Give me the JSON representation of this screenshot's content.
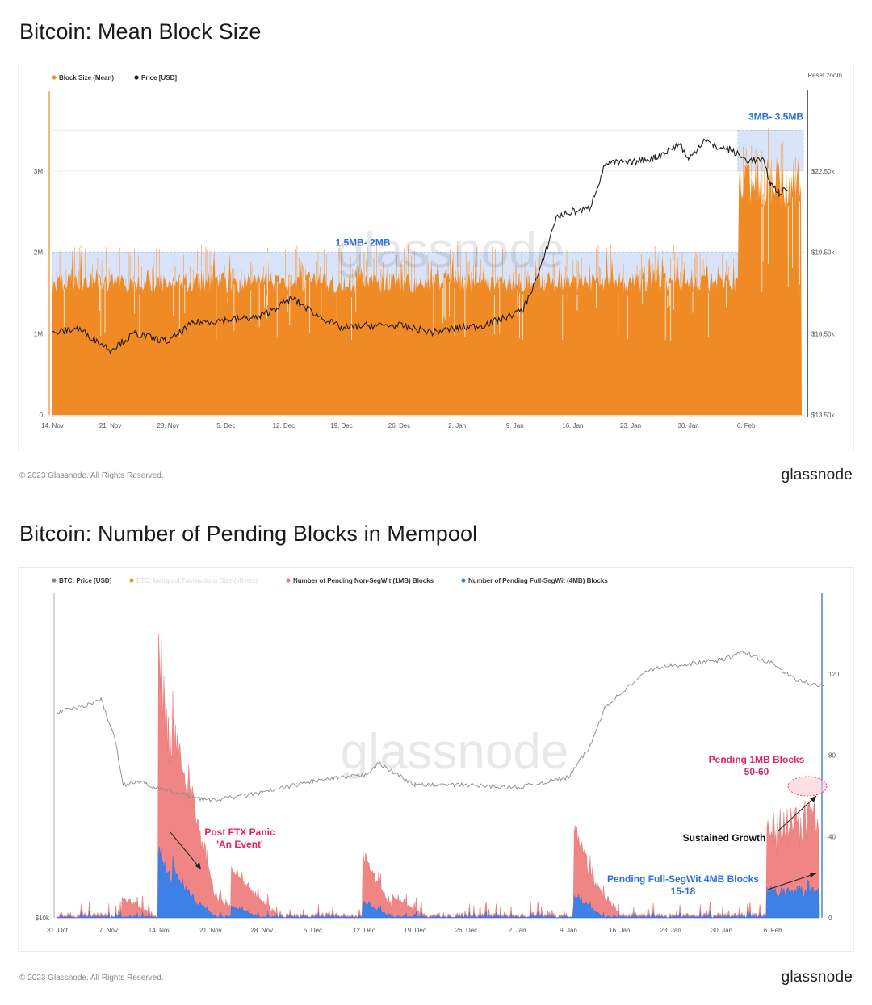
{
  "chart_data": [
    {
      "type": "area",
      "title": "Bitcoin: Mean Block Size",
      "reset_zoom": "Reset zoom",
      "watermark": "glassnode",
      "legend": [
        {
          "label": "Block Size (Mean)",
          "color": "#f7931a"
        },
        {
          "label": "Price [USD]",
          "color": "#222222"
        }
      ],
      "x_ticks": [
        "14. Nov",
        "21. Nov",
        "28. Nov",
        "5. Dec",
        "12. Dec",
        "19. Dec",
        "26. Dec",
        "2. Jan",
        "9. Jan",
        "16. Jan",
        "23. Jan",
        "30. Jan",
        "6. Feb"
      ],
      "y_left_ticks": [
        "0",
        "1M",
        "2M",
        "3M"
      ],
      "y_left_range": [
        0,
        4000000
      ],
      "y_right_ticks": [
        "$13.50k",
        "$16.50k",
        "$19.50k",
        "$22.50k"
      ],
      "y_right_range": [
        13500,
        25500
      ],
      "annotations": [
        {
          "text": "1.5MB- 2MB",
          "range": [
            1500000,
            2000000
          ],
          "from": "14. Nov",
          "to": "5. Feb"
        },
        {
          "text": "3MB- 3.5MB",
          "range": [
            3000000,
            3500000
          ],
          "from": "5. Feb",
          "to": "13. Feb"
        }
      ],
      "series": [
        {
          "name": "Block Size (Mean)",
          "summary": "~1.5-1.9M from 14. Nov to 4. Feb; ~2.5-3.5M after 5. Feb"
        },
        {
          "name": "Price [USD]",
          "points": [
            [
              "14. Nov",
              16500
            ],
            [
              "17. Nov",
              16700
            ],
            [
              "21. Nov",
              15900
            ],
            [
              "24. Nov",
              16500
            ],
            [
              "28. Nov",
              16200
            ],
            [
              "1. Dec",
              16900
            ],
            [
              "5. Dec",
              17000
            ],
            [
              "9. Dec",
              17100
            ],
            [
              "13. Dec",
              17800
            ],
            [
              "16. Dec",
              17200
            ],
            [
              "19. Dec",
              16700
            ],
            [
              "22. Dec",
              16800
            ],
            [
              "26. Dec",
              16800
            ],
            [
              "30. Dec",
              16550
            ],
            [
              "2. Jan",
              16700
            ],
            [
              "5. Jan",
              16800
            ],
            [
              "8. Jan",
              17100
            ],
            [
              "10. Jan",
              17400
            ],
            [
              "12. Jan",
              18800
            ],
            [
              "14. Jan",
              20800
            ],
            [
              "16. Jan",
              21000
            ],
            [
              "18. Jan",
              21100
            ],
            [
              "20. Jan",
              22800
            ],
            [
              "23. Jan",
              22800
            ],
            [
              "26. Jan",
              23000
            ],
            [
              "29. Jan",
              23500
            ],
            [
              "30. Jan",
              22900
            ],
            [
              "1. Feb",
              23700
            ],
            [
              "2. Feb",
              23400
            ],
            [
              "4. Feb",
              23300
            ],
            [
              "6. Feb",
              22900
            ],
            [
              "8. Feb",
              22900
            ],
            [
              "9. Feb",
              22000
            ],
            [
              "10. Feb",
              21700
            ],
            [
              "11. Feb",
              21800
            ]
          ]
        }
      ]
    },
    {
      "type": "area",
      "title": "Bitcoin: Number of Pending Blocks in Mempool",
      "watermark": "glassnode",
      "legend": [
        {
          "label": "BTC: Price [USD]",
          "color": "#888888"
        },
        {
          "label": "BTC: Mempool Transactions Size (vBytes)",
          "color": "#f7931a",
          "disabled": true
        },
        {
          "label": "Number of Pending Non-SegWit (1MB) Blocks",
          "color": "#ef7b7b"
        },
        {
          "label": "Number of Pending Full-SegWit (4MB) Blocks",
          "color": "#3a7ee6"
        }
      ],
      "x_ticks": [
        "31. Oct",
        "7. Nov",
        "14. Nov",
        "21. Nov",
        "28. Nov",
        "5. Dec",
        "12. Dec",
        "19. Dec",
        "26. Dec",
        "2. Jan",
        "9. Jan",
        "16. Jan",
        "23. Jan",
        "30. Jan",
        "6. Feb"
      ],
      "y_left_ticks": [
        "$10k"
      ],
      "y_right_ticks": [
        "0",
        "40",
        "80",
        "120"
      ],
      "y_right_range": [
        0,
        160
      ],
      "annotations": [
        {
          "text": "Post FTX Panic",
          "text2": "'An Event'",
          "color": "#e0245e"
        },
        {
          "text": "Sustained Growth",
          "color": "#111111"
        },
        {
          "text": "Pending 1MB Blocks",
          "text2": "50-60",
          "color": "#e0245e"
        },
        {
          "text": "Pending Full-SegWit 4MB Blocks",
          "text2": "15-18",
          "color": "#2f6fd6"
        }
      ],
      "series": [
        {
          "name": "Number of Pending Non-SegWit (1MB) Blocks",
          "peaks": [
            [
              "9. Nov",
              10
            ],
            [
              "14. Nov",
              143
            ],
            [
              "16. Nov",
              110
            ],
            [
              "18. Nov",
              75
            ],
            [
              "21. Nov",
              12
            ],
            [
              "24. Nov",
              28
            ],
            [
              "26. Nov",
              16
            ],
            [
              "12. Dec",
              33
            ],
            [
              "13. Dec",
              12
            ],
            [
              "16. Dec",
              10
            ],
            [
              "10. Jan",
              47
            ],
            [
              "11. Jan",
              30
            ],
            [
              "12. Jan",
              20
            ],
            [
              "7. Feb",
              45
            ],
            [
              "9. Feb",
              55
            ],
            [
              "11. Feb",
              60
            ],
            [
              "13. Feb",
              50
            ]
          ]
        },
        {
          "name": "Number of Pending Full-SegWit (4MB) Blocks",
          "peaks": [
            [
              "14. Nov",
              35
            ],
            [
              "16. Nov",
              28
            ],
            [
              "18. Nov",
              12
            ],
            [
              "24. Nov",
              6
            ],
            [
              "12. Dec",
              8
            ],
            [
              "10. Jan",
              12
            ],
            [
              "8. Feb",
              14
            ],
            [
              "11. Feb",
              17
            ],
            [
              "13. Feb",
              16
            ]
          ]
        },
        {
          "name": "BTC: Price [USD]",
          "points": [
            [
              "31. Oct",
              20500
            ],
            [
              "4. Nov",
              20900
            ],
            [
              "6. Nov",
              21200
            ],
            [
              "8. Nov",
              19000
            ],
            [
              "9. Nov",
              16800
            ],
            [
              "11. Nov",
              17000
            ],
            [
              "14. Nov",
              16600
            ],
            [
              "21. Nov",
              16000
            ],
            [
              "28. Nov",
              16400
            ],
            [
              "5. Dec",
              17000
            ],
            [
              "12. Dec",
              17300
            ],
            [
              "14. Dec",
              17900
            ],
            [
              "19. Dec",
              16800
            ],
            [
              "26. Dec",
              16800
            ],
            [
              "2. Jan",
              16650
            ],
            [
              "9. Jan",
              17200
            ],
            [
              "12. Jan",
              18800
            ],
            [
              "14. Jan",
              20800
            ],
            [
              "20. Jan",
              22700
            ],
            [
              "23. Jan",
              22900
            ],
            [
              "30. Jan",
              23200
            ],
            [
              "2. Feb",
              23600
            ],
            [
              "6. Feb",
              23000
            ],
            [
              "9. Feb",
              22200
            ],
            [
              "13. Feb",
              21800
            ]
          ]
        }
      ]
    }
  ],
  "footer": {
    "copyright": "© 2023 Glassnode. All Rights Reserved.",
    "brand": "glassnode"
  }
}
